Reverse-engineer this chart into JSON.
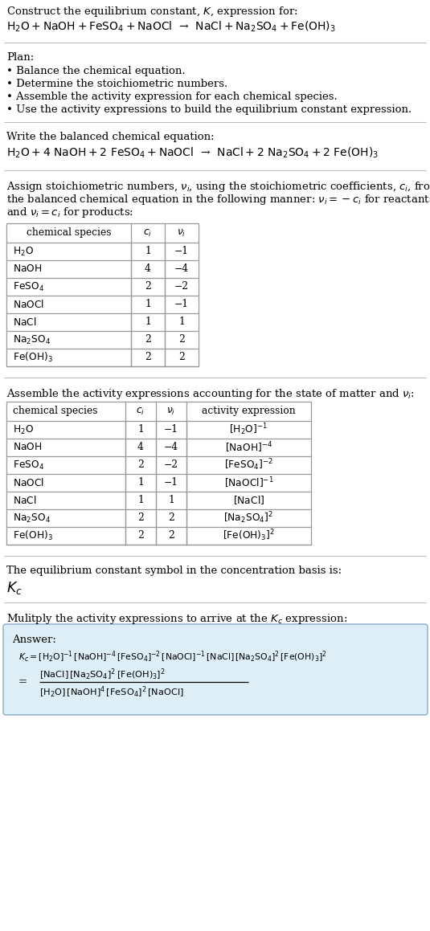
{
  "title_line1": "Construct the equilibrium constant, $K$, expression for:",
  "title_line2": "$\\mathrm{H_2O + NaOH + FeSO_4 + NaOCl}$  →  $\\mathrm{NaCl + Na_2SO_4 + Fe(OH)_3}$",
  "plan_header": "Plan:",
  "plan_items": [
    "• Balance the chemical equation.",
    "• Determine the stoichiometric numbers.",
    "• Assemble the activity expression for each chemical species.",
    "• Use the activity expressions to build the equilibrium constant expression."
  ],
  "balanced_header": "Write the balanced chemical equation:",
  "balanced_eq": "$\\mathrm{H_2O + 4\\ NaOH + 2\\ FeSO_4 + NaOCl}$  →  $\\mathrm{NaCl + 2\\ Na_2SO_4 + 2\\ Fe(OH)_3}$",
  "stoich_header_parts": [
    "Assign stoichiometric numbers, $\\nu_i$, using the stoichiometric coefficients, $c_i$, from",
    "the balanced chemical equation in the following manner: $\\nu_i = -c_i$ for reactants",
    "and $\\nu_i = c_i$ for products:"
  ],
  "table1_headers": [
    "chemical species",
    "$c_i$",
    "$\\nu_i$"
  ],
  "table1_rows": [
    [
      "$\\mathrm{H_2O}$",
      "1",
      "−1"
    ],
    [
      "$\\mathrm{NaOH}$",
      "4",
      "−4"
    ],
    [
      "$\\mathrm{FeSO_4}$",
      "2",
      "−2"
    ],
    [
      "$\\mathrm{NaOCl}$",
      "1",
      "−1"
    ],
    [
      "$\\mathrm{NaCl}$",
      "1",
      "1"
    ],
    [
      "$\\mathrm{Na_2SO_4}$",
      "2",
      "2"
    ],
    [
      "$\\mathrm{Fe(OH)_3}$",
      "2",
      "2"
    ]
  ],
  "activity_header": "Assemble the activity expressions accounting for the state of matter and $\\nu_i$:",
  "table2_headers": [
    "chemical species",
    "$c_i$",
    "$\\nu_i$",
    "activity expression"
  ],
  "table2_rows": [
    [
      "$\\mathrm{H_2O}$",
      "1",
      "−1",
      "$[\\mathrm{H_2O}]^{-1}$"
    ],
    [
      "$\\mathrm{NaOH}$",
      "4",
      "−4",
      "$[\\mathrm{NaOH}]^{-4}$"
    ],
    [
      "$\\mathrm{FeSO_4}$",
      "2",
      "−2",
      "$[\\mathrm{FeSO_4}]^{-2}$"
    ],
    [
      "$\\mathrm{NaOCl}$",
      "1",
      "−1",
      "$[\\mathrm{NaOCl}]^{-1}$"
    ],
    [
      "$\\mathrm{NaCl}$",
      "1",
      "1",
      "$[\\mathrm{NaCl}]$"
    ],
    [
      "$\\mathrm{Na_2SO_4}$",
      "2",
      "2",
      "$[\\mathrm{Na_2SO_4}]^2$"
    ],
    [
      "$\\mathrm{Fe(OH)_3}$",
      "2",
      "2",
      "$[\\mathrm{Fe(OH)_3}]^2$"
    ]
  ],
  "kc_header": "The equilibrium constant symbol in the concentration basis is:",
  "kc_symbol": "$K_c$",
  "multiply_header": "Mulitply the activity expressions to arrive at the $K_c$ expression:",
  "answer_label": "Answer:",
  "answer_line1": "$K_c = [\\mathrm{H_2O}]^{-1}\\,[\\mathrm{NaOH}]^{-4}\\,[\\mathrm{FeSO_4}]^{-2}\\,[\\mathrm{NaOCl}]^{-1}\\,[\\mathrm{NaCl}]\\,[\\mathrm{Na_2SO_4}]^2\\,[\\mathrm{Fe(OH)_3}]^2$",
  "answer_eq": "=",
  "answer_line2_num": "$[\\mathrm{NaCl}]\\,[\\mathrm{Na_2SO_4}]^2\\,[\\mathrm{Fe(OH)_3}]^2$",
  "answer_line2_den": "$[\\mathrm{H_2O}]\\,[\\mathrm{NaOH}]^4\\,[\\mathrm{FeSO_4}]^2\\,[\\mathrm{NaOCl}]$",
  "bg_color": "#ffffff",
  "text_color": "#000000",
  "table_border_color": "#999999",
  "answer_box_facecolor": "#ddeef6",
  "answer_box_edgecolor": "#88aacc",
  "separator_color": "#bbbbbb"
}
